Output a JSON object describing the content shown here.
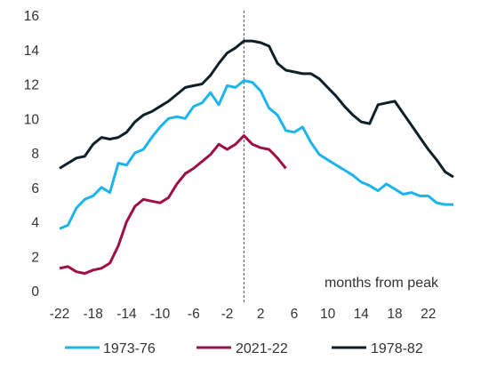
{
  "chart_data": {
    "type": "line",
    "title": "",
    "xlabel": "",
    "ylabel": "",
    "annotation": "months from peak",
    "xlim": [
      -22,
      25
    ],
    "ylim": [
      0,
      16
    ],
    "x_ticks": [
      "-22",
      "-18",
      "-14",
      "-10",
      "-6",
      "-2",
      "2",
      "6",
      "10",
      "14",
      "18",
      "22"
    ],
    "y_ticks": [
      "0",
      "2",
      "4",
      "6",
      "8",
      "10",
      "12",
      "14",
      "16"
    ],
    "reference_line_x": 0,
    "grid": false,
    "legend_position": "bottom",
    "series": [
      {
        "name": "1973-76",
        "color": "#1cb4ec",
        "x": [
          -22,
          -21,
          -20,
          -19,
          -18,
          -17,
          -16,
          -15,
          -14,
          -13,
          -12,
          -11,
          -10,
          -9,
          -8,
          -7,
          -6,
          -5,
          -4,
          -3,
          -2,
          -1,
          0,
          1,
          2,
          3,
          4,
          5,
          6,
          7,
          8,
          9,
          10,
          11,
          12,
          13,
          14,
          15,
          16,
          17,
          18,
          19,
          20,
          21,
          22,
          23,
          24,
          25
        ],
        "y": [
          3.6,
          3.8,
          4.8,
          5.3,
          5.5,
          6.0,
          5.7,
          7.4,
          7.3,
          8.0,
          8.2,
          8.9,
          9.5,
          10.0,
          10.1,
          10.0,
          10.7,
          10.9,
          11.5,
          10.8,
          11.9,
          11.8,
          12.2,
          12.1,
          11.6,
          10.6,
          10.2,
          9.3,
          9.2,
          9.5,
          8.6,
          7.9,
          7.6,
          7.3,
          7.0,
          6.7,
          6.3,
          6.1,
          5.8,
          6.2,
          5.9,
          5.6,
          5.7,
          5.5,
          5.5,
          5.1,
          5.0,
          5.0
        ]
      },
      {
        "name": "2021-22",
        "color": "#9e1045",
        "x": [
          -22,
          -21,
          -20,
          -19,
          -18,
          -17,
          -16,
          -15,
          -14,
          -13,
          -12,
          -11,
          -10,
          -9,
          -8,
          -7,
          -6,
          -5,
          -4,
          -3,
          -2,
          -1,
          0,
          1,
          2,
          3,
          4,
          5
        ],
        "y": [
          1.3,
          1.4,
          1.1,
          1.0,
          1.2,
          1.3,
          1.6,
          2.6,
          4.0,
          4.9,
          5.3,
          5.2,
          5.1,
          5.4,
          6.2,
          6.8,
          7.1,
          7.5,
          7.9,
          8.5,
          8.2,
          8.5,
          9.0,
          8.5,
          8.3,
          8.2,
          7.7,
          7.1
        ]
      },
      {
        "name": "1978-82",
        "color": "#0e2028",
        "x": [
          -22,
          -21,
          -20,
          -19,
          -18,
          -17,
          -16,
          -15,
          -14,
          -13,
          -12,
          -11,
          -10,
          -9,
          -8,
          -7,
          -6,
          -5,
          -4,
          -3,
          -2,
          -1,
          0,
          1,
          2,
          3,
          4,
          5,
          6,
          7,
          8,
          9,
          10,
          11,
          12,
          13,
          14,
          15,
          16,
          17,
          18,
          19,
          20,
          21,
          22,
          23,
          24,
          25
        ],
        "y": [
          7.1,
          7.4,
          7.7,
          7.8,
          8.5,
          8.9,
          8.8,
          8.9,
          9.2,
          9.8,
          10.2,
          10.4,
          10.7,
          11.0,
          11.4,
          11.8,
          11.9,
          12.0,
          12.5,
          13.2,
          13.8,
          14.1,
          14.5,
          14.5,
          14.4,
          14.2,
          13.2,
          12.8,
          12.7,
          12.6,
          12.6,
          12.3,
          11.8,
          11.3,
          10.7,
          10.2,
          9.8,
          9.7,
          10.8,
          10.9,
          11.0,
          10.3,
          9.6,
          8.9,
          8.2,
          7.6,
          6.9,
          6.6
        ]
      }
    ]
  }
}
